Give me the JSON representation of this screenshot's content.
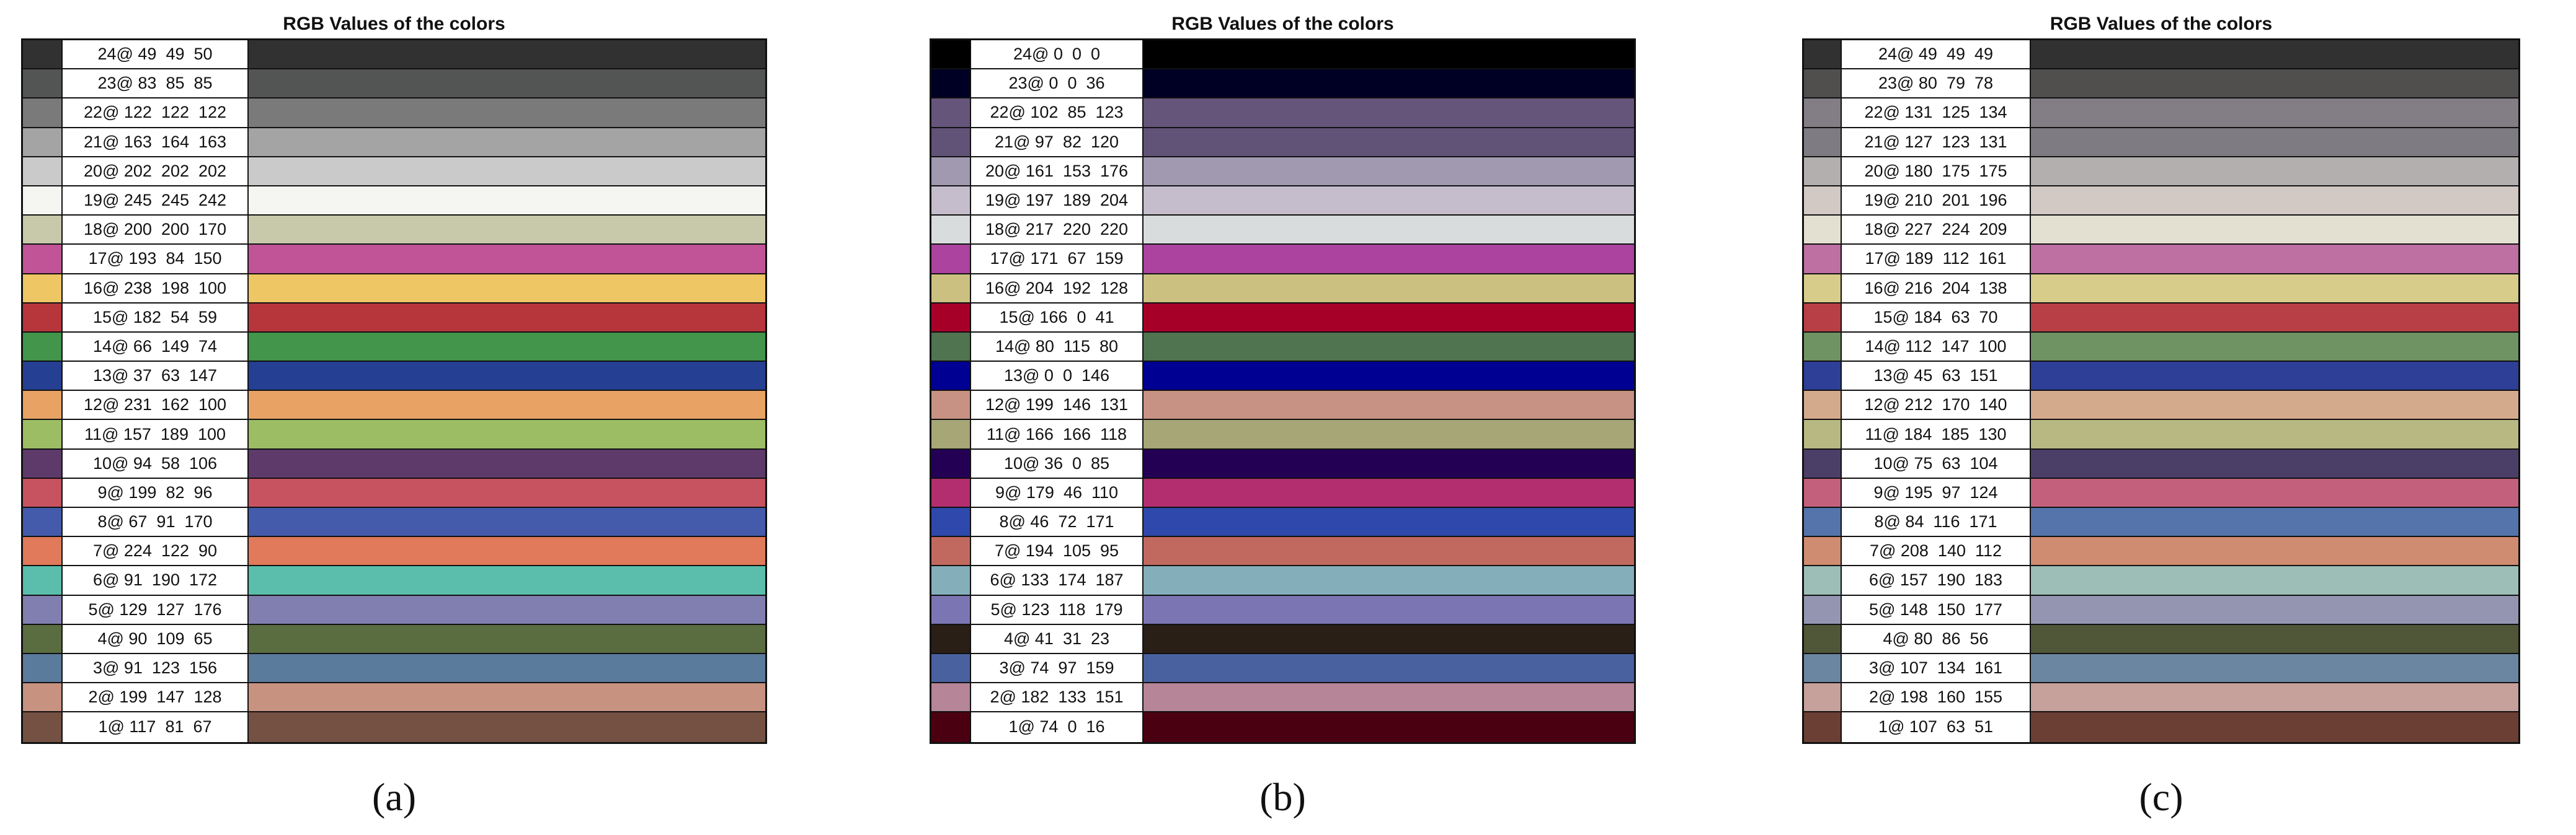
{
  "panels": [
    {
      "title": "RGB Values of the colors",
      "caption": "(a)",
      "rows": [
        {
          "label": "24@ 49  49  50",
          "color": "rgb(49,49,50)"
        },
        {
          "label": "23@ 83  85  85",
          "color": "rgb(83,85,85)"
        },
        {
          "label": "22@ 122  122  122",
          "color": "rgb(122,122,122)"
        },
        {
          "label": "21@ 163  164  163",
          "color": "rgb(163,164,163)"
        },
        {
          "label": "20@ 202  202  202",
          "color": "rgb(202,202,202)"
        },
        {
          "label": "19@ 245  245  242",
          "color": "rgb(245,245,242)"
        },
        {
          "label": "18@ 200  200  170",
          "color": "rgb(200,200,170)"
        },
        {
          "label": "17@ 193  84  150",
          "color": "rgb(193,84,150)"
        },
        {
          "label": "16@ 238  198  100",
          "color": "rgb(238,198,100)"
        },
        {
          "label": "15@ 182  54  59",
          "color": "rgb(182,54,59)"
        },
        {
          "label": "14@ 66  149  74",
          "color": "rgb(66,149,74)"
        },
        {
          "label": "13@ 37  63  147",
          "color": "rgb(37,63,147)"
        },
        {
          "label": "12@ 231  162  100",
          "color": "rgb(231,162,100)"
        },
        {
          "label": "11@ 157  189  100",
          "color": "rgb(157,189,100)"
        },
        {
          "label": "10@ 94  58  106",
          "color": "rgb(94,58,106)"
        },
        {
          "label": "9@ 199  82  96",
          "color": "rgb(199,82,96)"
        },
        {
          "label": "8@ 67  91  170",
          "color": "rgb(67,91,170)"
        },
        {
          "label": "7@ 224  122  90",
          "color": "rgb(224,122,90)"
        },
        {
          "label": "6@ 91  190  172",
          "color": "rgb(91,190,172)"
        },
        {
          "label": "5@ 129  127  176",
          "color": "rgb(129,127,176)"
        },
        {
          "label": "4@ 90  109  65",
          "color": "rgb(90,109,65)"
        },
        {
          "label": "3@ 91  123  156",
          "color": "rgb(91,123,156)"
        },
        {
          "label": "2@ 199  147  128",
          "color": "rgb(199,147,128)"
        },
        {
          "label": "1@ 117  81  67",
          "color": "rgb(117,81,67)"
        }
      ]
    },
    {
      "title": "RGB Values of the colors",
      "caption": "(b)",
      "rows": [
        {
          "label": "24@ 0  0  0",
          "color": "rgb(0,0,0)"
        },
        {
          "label": "23@ 0  0  36",
          "color": "rgb(0,0,36)"
        },
        {
          "label": "22@ 102  85  123",
          "color": "rgb(102,85,123)"
        },
        {
          "label": "21@ 97  82  120",
          "color": "rgb(97,82,120)"
        },
        {
          "label": "20@ 161  153  176",
          "color": "rgb(161,153,176)"
        },
        {
          "label": "19@ 197  189  204",
          "color": "rgb(197,189,204)"
        },
        {
          "label": "18@ 217  220  220",
          "color": "rgb(217,220,220)"
        },
        {
          "label": "17@ 171  67  159",
          "color": "rgb(171,67,159)"
        },
        {
          "label": "16@ 204  192  128",
          "color": "rgb(204,192,128)"
        },
        {
          "label": "15@ 166  0  41",
          "color": "rgb(166,0,41)"
        },
        {
          "label": "14@ 80  115  80",
          "color": "rgb(80,115,80)"
        },
        {
          "label": "13@ 0  0  146",
          "color": "rgb(0,0,146)"
        },
        {
          "label": "12@ 199  146  131",
          "color": "rgb(199,146,131)"
        },
        {
          "label": "11@ 166  166  118",
          "color": "rgb(166,166,118)"
        },
        {
          "label": "10@ 36  0  85",
          "color": "rgb(36,0,85)"
        },
        {
          "label": "9@ 179  46  110",
          "color": "rgb(179,46,110)"
        },
        {
          "label": "8@ 46  72  171",
          "color": "rgb(46,72,171)"
        },
        {
          "label": "7@ 194  105  95",
          "color": "rgb(194,105,95)"
        },
        {
          "label": "6@ 133  174  187",
          "color": "rgb(133,174,187)"
        },
        {
          "label": "5@ 123  118  179",
          "color": "rgb(123,118,179)"
        },
        {
          "label": "4@ 41  31  23",
          "color": "rgb(41,31,23)"
        },
        {
          "label": "3@ 74  97  159",
          "color": "rgb(74,97,159)"
        },
        {
          "label": "2@ 182  133  151",
          "color": "rgb(182,133,151)"
        },
        {
          "label": "1@ 74  0  16",
          "color": "rgb(74,0,16)"
        }
      ]
    },
    {
      "title": "RGB Values of the colors",
      "caption": "(c)",
      "rows": [
        {
          "label": "24@ 49  49  49",
          "color": "rgb(49,49,49)"
        },
        {
          "label": "23@ 80  79  78",
          "color": "rgb(80,79,78)"
        },
        {
          "label": "22@ 131  125  134",
          "color": "rgb(131,125,134)"
        },
        {
          "label": "21@ 127  123  131",
          "color": "rgb(127,123,131)"
        },
        {
          "label": "20@ 180  175  175",
          "color": "rgb(180,175,175)"
        },
        {
          "label": "19@ 210  201  196",
          "color": "rgb(210,201,196)"
        },
        {
          "label": "18@ 227  224  209",
          "color": "rgb(227,224,209)"
        },
        {
          "label": "17@ 189  112  161",
          "color": "rgb(189,112,161)"
        },
        {
          "label": "16@ 216  204  138",
          "color": "rgb(216,204,138)"
        },
        {
          "label": "15@ 184  63  70",
          "color": "rgb(184,63,70)"
        },
        {
          "label": "14@ 112  147  100",
          "color": "rgb(112,147,100)"
        },
        {
          "label": "13@ 45  63  151",
          "color": "rgb(45,63,151)"
        },
        {
          "label": "12@ 212  170  140",
          "color": "rgb(212,170,140)"
        },
        {
          "label": "11@ 184  185  130",
          "color": "rgb(184,185,130)"
        },
        {
          "label": "10@ 75  63  104",
          "color": "rgb(75,63,104)"
        },
        {
          "label": "9@ 195  97  124",
          "color": "rgb(195,97,124)"
        },
        {
          "label": "8@ 84  116  171",
          "color": "rgb(84,116,171)"
        },
        {
          "label": "7@ 208  140  112",
          "color": "rgb(208,140,112)"
        },
        {
          "label": "6@ 157  190  183",
          "color": "rgb(157,190,183)"
        },
        {
          "label": "5@ 148  150  177",
          "color": "rgb(148,150,177)"
        },
        {
          "label": "4@ 80  86  56",
          "color": "rgb(80,86,56)"
        },
        {
          "label": "3@ 107  134  161",
          "color": "rgb(107,134,161)"
        },
        {
          "label": "2@ 198  160  155",
          "color": "rgb(198,160,155)"
        },
        {
          "label": "1@ 107  63  51",
          "color": "rgb(107,63,51)"
        }
      ]
    }
  ]
}
